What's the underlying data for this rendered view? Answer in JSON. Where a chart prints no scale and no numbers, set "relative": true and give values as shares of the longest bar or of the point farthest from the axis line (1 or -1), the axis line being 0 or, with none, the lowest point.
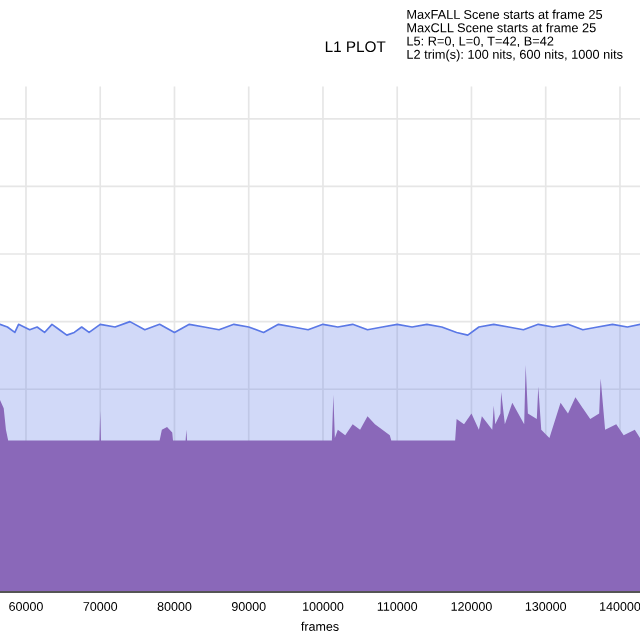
{
  "chart_data": {
    "type": "area",
    "title": "L1 PLOT",
    "xlabel": "frames",
    "relative": true,
    "tick_labels": "x",
    "grid": true,
    "annotations": [
      "MaxFALL Scene starts at frame 25\nMaxCLL Scene starts at frame 25\nL5: R=0, L=0, T=42, B=42\nL2 trim(s): 100 nits, 600 nits, 1000 nits"
    ],
    "xlim": [
      56500,
      142700
    ],
    "xticks": [
      60000,
      70000,
      80000,
      90000,
      100000,
      110000,
      120000,
      130000,
      140000
    ],
    "series": [
      {
        "color": "#5a78e6",
        "x": [
          56500,
          57500,
          58500,
          59000,
          60500,
          61500,
          62500,
          63500,
          64500,
          65500,
          66500,
          67500,
          68500,
          70000,
          72000,
          74000,
          76000,
          78000,
          80000,
          82000,
          84000,
          86000,
          88000,
          90000,
          92000,
          94000,
          96000,
          98000,
          100000,
          102000,
          104000,
          106000,
          108000,
          110000,
          112000,
          114000,
          116000,
          118000,
          119500,
          121000,
          123000,
          125000,
          127000,
          129000,
          131000,
          133000,
          135000,
          137000,
          139000,
          141000,
          142700
        ],
        "values": [
          0.99,
          0.98,
          0.96,
          0.99,
          0.97,
          0.98,
          0.96,
          0.99,
          0.97,
          0.95,
          0.96,
          0.98,
          0.96,
          0.99,
          0.98,
          1.0,
          0.97,
          0.99,
          0.96,
          0.99,
          0.98,
          0.97,
          0.99,
          0.98,
          0.96,
          0.99,
          0.98,
          0.97,
          0.99,
          0.98,
          0.99,
          0.97,
          0.98,
          0.99,
          0.98,
          0.99,
          0.98,
          0.96,
          0.95,
          0.98,
          0.99,
          0.98,
          0.97,
          0.99,
          0.98,
          0.99,
          0.97,
          0.98,
          0.99,
          0.98,
          0.99
        ]
      },
      {
        "color": "#8a68b9",
        "x": [
          56500,
          57000,
          57300,
          57600,
          69900,
          70000,
          70100,
          78000,
          78300,
          79000,
          79700,
          79800,
          81500,
          81600,
          81700,
          101200,
          101400,
          101600,
          102000,
          103000,
          104000,
          105000,
          106000,
          107000,
          108000,
          109000,
          109200,
          117800,
          118000,
          119000,
          120000,
          121000,
          121400,
          122800,
          123000,
          123200,
          123900,
          124000,
          124500,
          125500,
          127100,
          127300,
          127600,
          128800,
          129000,
          129400,
          130500,
          132000,
          133000,
          134000,
          135000,
          136000,
          137200,
          137400,
          138000,
          139500,
          140500,
          142000,
          142700
        ],
        "values": [
          0.71,
          0.68,
          0.6,
          0.56,
          0.56,
          0.67,
          0.56,
          0.56,
          0.6,
          0.61,
          0.59,
          0.56,
          0.56,
          0.6,
          0.56,
          0.56,
          0.73,
          0.57,
          0.6,
          0.58,
          0.62,
          0.6,
          0.65,
          0.62,
          0.6,
          0.58,
          0.56,
          0.56,
          0.64,
          0.62,
          0.66,
          0.6,
          0.65,
          0.6,
          0.69,
          0.62,
          0.66,
          0.74,
          0.62,
          0.7,
          0.62,
          0.84,
          0.66,
          0.64,
          0.76,
          0.6,
          0.57,
          0.7,
          0.66,
          0.72,
          0.68,
          0.64,
          0.66,
          0.79,
          0.6,
          0.62,
          0.58,
          0.6,
          0.57
        ]
      }
    ]
  }
}
